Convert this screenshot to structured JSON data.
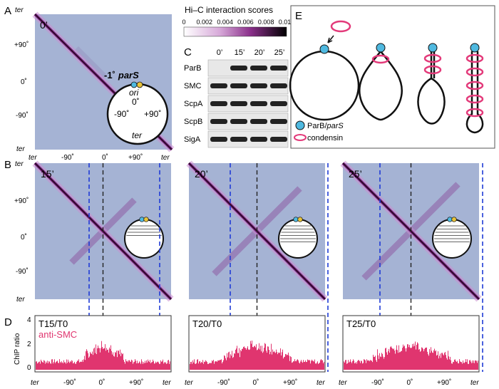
{
  "panel_letters": {
    "A": "A",
    "B": "B",
    "C": "C",
    "D": "D",
    "E": "E"
  },
  "axis_ticks": {
    "ter": "ter",
    "m90": "-90˚",
    "zero": "0˚",
    "p90": "+90˚"
  },
  "panel_a": {
    "time": "0’",
    "pars_prefix": "-1˚",
    "pars_label": "parS",
    "circle": {
      "ori": "ori",
      "zero": "0˚",
      "left": "-90˚",
      "right": "+90˚",
      "ter": "ter"
    }
  },
  "colorbar": {
    "title": "Hi–C interaction scores",
    "ticks": [
      "0",
      "0.002",
      "0.004",
      "0.006",
      "0.008",
      "0.010"
    ],
    "colors": {
      "low": "#ffffff",
      "mid": "#8a2f8a",
      "high": "#000000"
    }
  },
  "western": {
    "times": [
      "0’",
      "15’",
      "20’",
      "25’"
    ],
    "rows": [
      "ParB",
      "SMC",
      "ScpA",
      "ScpB",
      "SigA"
    ]
  },
  "panel_b": {
    "times": [
      "15’",
      "20’",
      "25’"
    ]
  },
  "panel_d": {
    "ylabel": "ChIP ratio",
    "yticks": [
      "0",
      "2",
      "4"
    ],
    "series_label": "anti-SMC",
    "labels": [
      "T15/T0",
      "T20/T0",
      "T25/T0"
    ],
    "color": "#e0356f"
  },
  "panel_e": {
    "legend_parb": "ParB/",
    "legend_pars": "parS",
    "legend_condensin": "condensin"
  },
  "colors": {
    "dashed_blue": "#1f3bd6",
    "dashed_black": "#222222",
    "parb_fill": "#4fb9e0",
    "condensin": "#e33a7a"
  }
}
